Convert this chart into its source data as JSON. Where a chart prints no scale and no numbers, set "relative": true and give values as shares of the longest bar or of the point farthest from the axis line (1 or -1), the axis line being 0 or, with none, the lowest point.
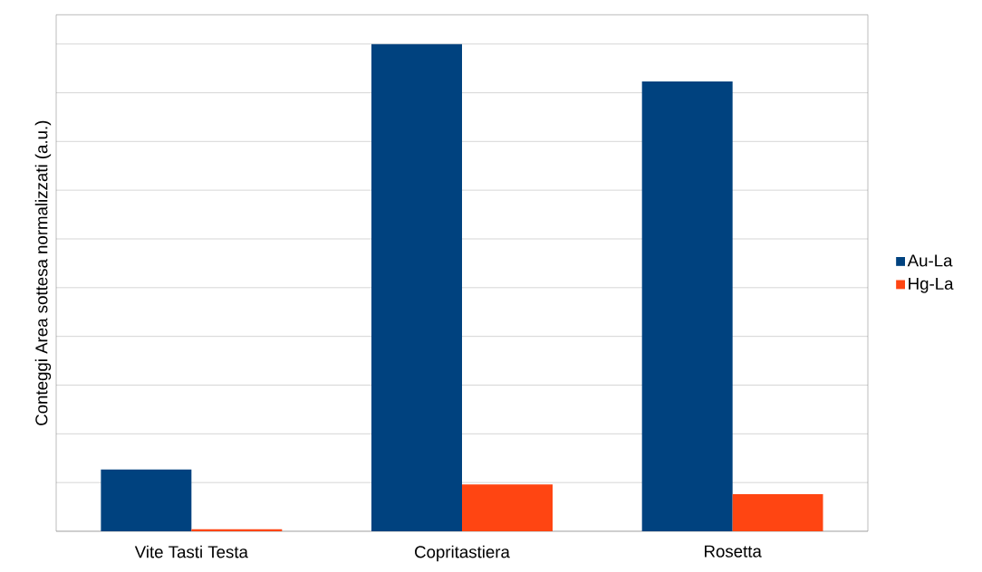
{
  "chart_data": {
    "type": "bar",
    "relative": true,
    "ylabel": "Conteggi Area sottesa normalizzati (a.u.)",
    "categories": [
      "Vite Tasti Testa",
      "Copritastiera",
      "Rosetta"
    ],
    "series": [
      {
        "name": "Au-La",
        "color": "#00427f",
        "values": [
          0.127,
          1,
          0.923
        ]
      },
      {
        "name": "Hg-La",
        "color": "#ff4512",
        "values": [
          0.004,
          0.096,
          0.076
        ]
      }
    ],
    "grid": "y",
    "legend": "right"
  }
}
